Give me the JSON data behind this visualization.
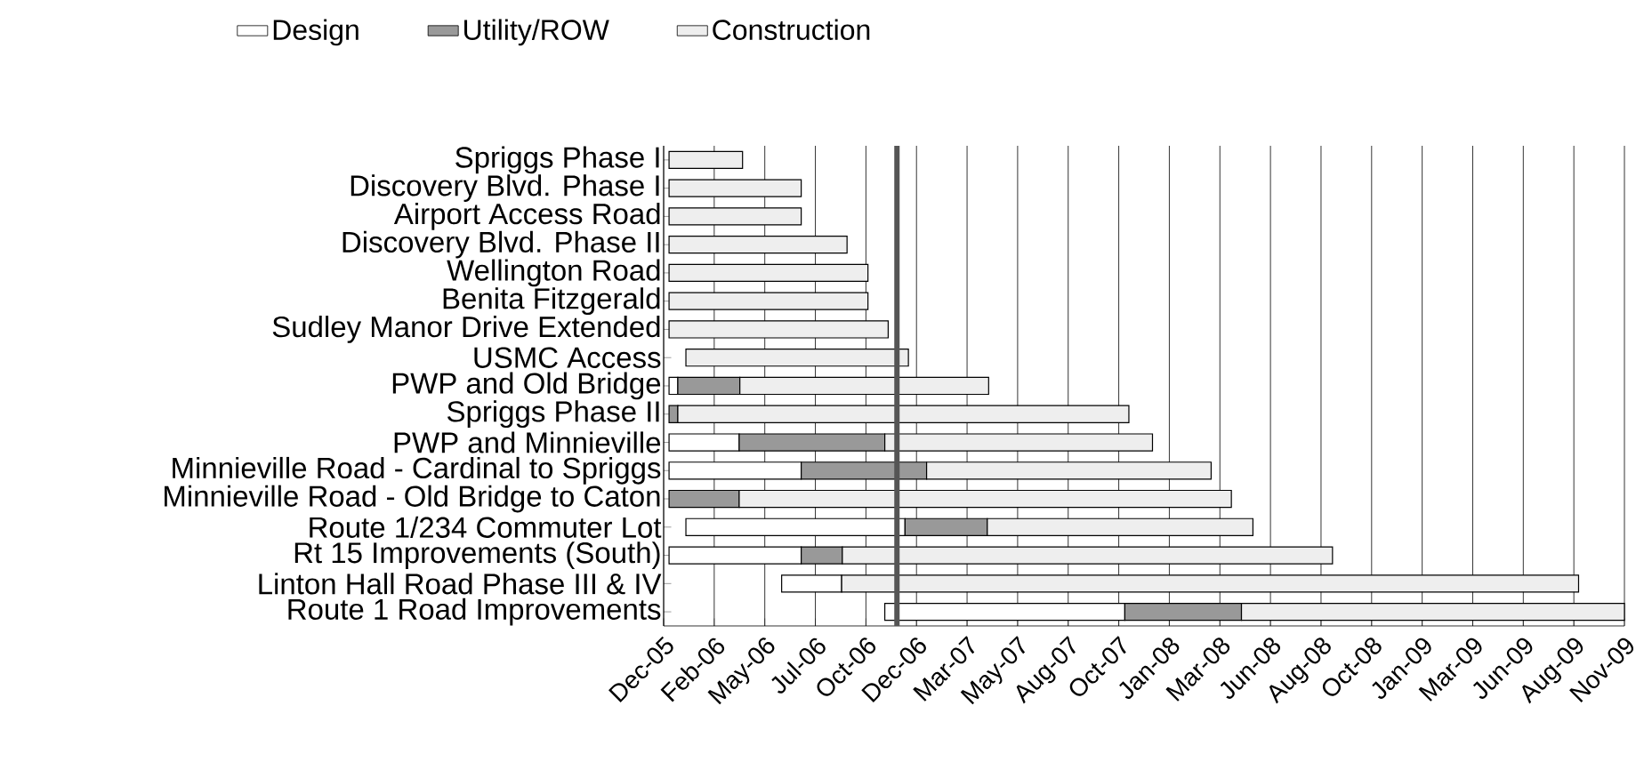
{
  "chart_data": {
    "type": "bar",
    "orientation": "horizontal",
    "legend": "top",
    "grid": "x",
    "categories": [
      "Spriggs Phase I",
      "Discovery Blvd. Phase I",
      "Airport Access Road",
      "Discovery Blvd. Phase II",
      "Wellington Road",
      "Benita Fitzgerald",
      "Sudley Manor Drive Extended",
      "USMC Access",
      "PWP and Old Bridge",
      "Spriggs Phase II",
      "PWP and Minnieville",
      "Minnieville Road - Cardinal to Spriggs",
      "Minnieville Road - Old Bridge to Caton",
      "Route 1/234 Commuter Lot",
      "Rt 15 Improvements (South)",
      "Linton Hall Road Phase III & IV",
      "Route 1 Road Improvements"
    ],
    "series": [
      {
        "name": "Design",
        "color": "#ffffff",
        "base": [
          null,
          null,
          null,
          null,
          null,
          null,
          null,
          null,
          13140,
          null,
          13140,
          13140,
          null,
          13165,
          13140,
          13307,
          13460
        ],
        "values": [
          null,
          null,
          null,
          null,
          null,
          null,
          null,
          null,
          13,
          null,
          104,
          196,
          null,
          325,
          196,
          89,
          356
        ]
      },
      {
        "name": "Utility/ROW",
        "color": "#999999",
        "base": [
          null,
          null,
          null,
          null,
          null,
          null,
          null,
          null,
          13153,
          13140,
          13244,
          13336,
          13140,
          13490,
          13336,
          null,
          13816
        ],
        "values": [
          null,
          null,
          null,
          null,
          null,
          null,
          null,
          null,
          92,
          13,
          216,
          186,
          104,
          122,
          61,
          null,
          173
        ]
      },
      {
        "name": "Construction",
        "color": "#eeeeee",
        "base": [
          13140,
          13140,
          13140,
          13140,
          13140,
          13140,
          13140,
          13165,
          13245,
          13153,
          13460,
          13522,
          13244,
          13612,
          13397,
          13396,
          13989
        ],
        "values": [
          109,
          196,
          196,
          264,
          295,
          295,
          325,
          330,
          369,
          669,
          397,
          422,
          730,
          394,
          727,
          1093,
          568
        ]
      }
    ],
    "xlim": [
      "2005-12-15",
      "2009-11-09"
    ],
    "xticks": [
      {
        "value": "2005-12-15",
        "label": "Dec-05"
      },
      {
        "value": "2006-02-28",
        "label": "Feb-06"
      },
      {
        "value": "2006-05-14",
        "label": "May-06"
      },
      {
        "value": "2006-07-28",
        "label": "Jul-06"
      },
      {
        "value": "2006-10-11",
        "label": "Oct-06"
      },
      {
        "value": "2006-12-25",
        "label": "Dec-06"
      },
      {
        "value": "2007-03-10",
        "label": "Mar-07"
      },
      {
        "value": "2007-05-24",
        "label": "May-07"
      },
      {
        "value": "2007-08-07",
        "label": "Aug-07"
      },
      {
        "value": "2007-10-21",
        "label": "Oct-07"
      },
      {
        "value": "2008-01-04",
        "label": "Jan-08"
      },
      {
        "value": "2008-03-19",
        "label": "Mar-08"
      },
      {
        "value": "2008-06-02",
        "label": "Jun-08"
      },
      {
        "value": "2008-08-16",
        "label": "Aug-08"
      },
      {
        "value": "2008-10-30",
        "label": "Oct-08"
      },
      {
        "value": "2009-01-13",
        "label": "Jan-09"
      },
      {
        "value": "2009-03-29",
        "label": "Mar-09"
      },
      {
        "value": "2009-06-12",
        "label": "Jun-09"
      },
      {
        "value": "2009-08-26",
        "label": "Aug-09"
      },
      {
        "value": "2009-11-09",
        "label": "Nov-09"
      }
    ],
    "ref_lines": [
      {
        "axis": "x",
        "value": "2006-11-26",
        "color": "#555555"
      }
    ]
  }
}
